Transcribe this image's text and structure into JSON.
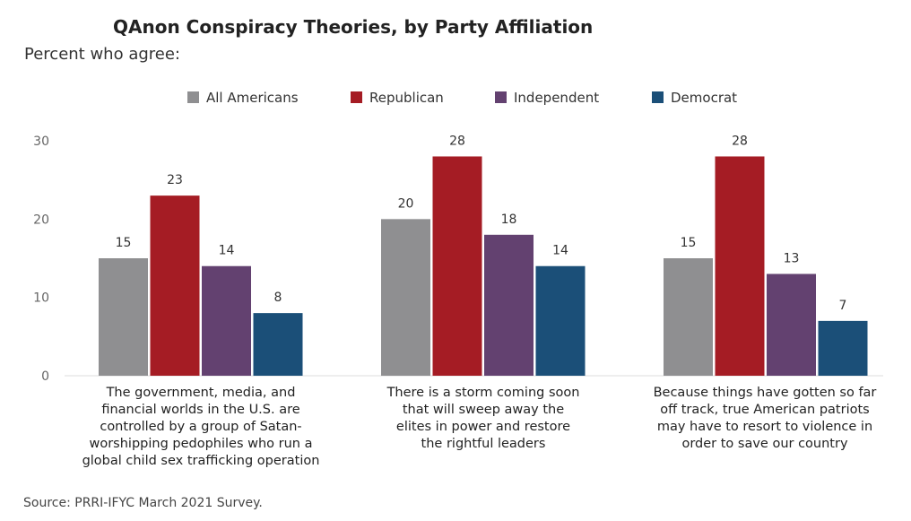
{
  "chart_data": {
    "type": "bar",
    "title": "QAnon Conspiracy Theories, by Party Affiliation",
    "subtitle": "Percent who agree:",
    "source": "Source: PRRI-IFYC March 2021 Survey.",
    "ylim": [
      0,
      30
    ],
    "yticks": [
      0,
      10,
      20,
      30
    ],
    "grid": false,
    "legend_position": "top",
    "categories": [
      "The government, media, and financial worlds in the U.S. are controlled by a group of Satan-worshipping pedophiles who run a global child sex trafficking operation",
      "There is a storm coming soon that will sweep away the elites in power and restore the rightful leaders",
      "Because things have gotten so far off track, true American patriots may have to resort to violence in order to save our country"
    ],
    "category_lines": [
      [
        "The government, media, and",
        "financial worlds in the U.S. are",
        "controlled by a group of Satan-",
        "worshipping pedophiles who run a",
        "global child sex trafficking operation"
      ],
      [
        "There is a storm coming soon",
        "that will sweep away the",
        "elites in power and restore",
        "the rightful leaders"
      ],
      [
        "Because things have gotten so far",
        "off track, true American patriots",
        "may have to resort to violence in",
        "order to save our country"
      ]
    ],
    "series": [
      {
        "name": "All Americans",
        "color": "#8f8f91",
        "values": [
          15,
          20,
          15
        ]
      },
      {
        "name": "Republican",
        "color": "#a51c24",
        "values": [
          23,
          28,
          28
        ]
      },
      {
        "name": "Independent",
        "color": "#634170",
        "values": [
          14,
          18,
          13
        ]
      },
      {
        "name": "Democrat",
        "color": "#1b4f78",
        "values": [
          8,
          14,
          7
        ]
      }
    ]
  }
}
